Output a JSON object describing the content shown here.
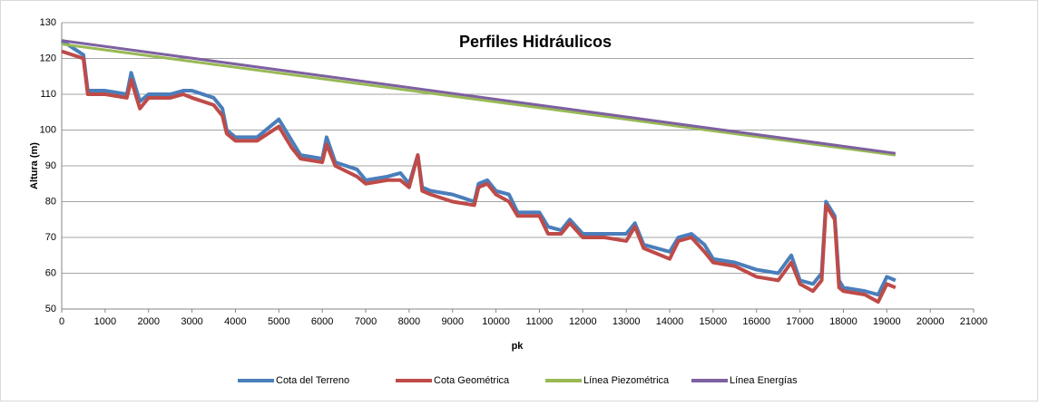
{
  "chart_data": {
    "type": "line",
    "title": "Perfiles Hidráulicos",
    "x_label": "pk",
    "y_label": "Altura (m)",
    "xlim": [
      0,
      21000
    ],
    "xticks": [
      0,
      1000,
      2000,
      3000,
      4000,
      5000,
      6000,
      7000,
      8000,
      9000,
      10000,
      11000,
      12000,
      13000,
      14000,
      15000,
      16000,
      17000,
      18000,
      19000,
      20000,
      21000
    ],
    "ylim": [
      50,
      130
    ],
    "yticks": [
      50,
      60,
      70,
      80,
      90,
      100,
      110,
      120,
      130
    ],
    "grid": true,
    "legend": "bottom",
    "series": [
      {
        "name": "Cota del Terreno",
        "color": "#4a7ebb",
        "x": [
          0,
          500,
          600,
          1000,
          1500,
          1600,
          1800,
          2000,
          2500,
          2800,
          3000,
          3500,
          3700,
          3800,
          4000,
          4500,
          5000,
          5300,
          5500,
          6000,
          6100,
          6300,
          6800,
          7000,
          7500,
          7800,
          8000,
          8200,
          8300,
          8500,
          9000,
          9500,
          9600,
          9800,
          10000,
          10300,
          10500,
          11000,
          11200,
          11500,
          11700,
          12000,
          12500,
          13000,
          13200,
          13400,
          14000,
          14200,
          14500,
          14800,
          15000,
          15500,
          16000,
          16500,
          16800,
          17000,
          17300,
          17500,
          17600,
          17800,
          17900,
          18000,
          18500,
          18800,
          19000,
          19200
        ],
        "values": [
          125,
          121,
          111,
          111,
          110,
          116,
          108,
          110,
          110,
          111,
          111,
          109,
          106,
          100,
          98,
          98,
          103,
          97,
          93,
          92,
          98,
          91,
          89,
          86,
          87,
          88,
          85,
          93,
          84,
          83,
          82,
          80,
          85,
          86,
          83,
          82,
          77,
          77,
          73,
          72,
          75,
          71,
          71,
          71,
          74,
          68,
          66,
          70,
          71,
          68,
          64,
          63,
          61,
          60,
          65,
          58,
          57,
          60,
          80,
          76,
          58,
          56,
          55,
          54,
          59,
          58
        ]
      },
      {
        "name": "Cota Geométrica",
        "color": "#be4b48",
        "x": [
          0,
          500,
          600,
          1000,
          1500,
          1600,
          1800,
          2000,
          2500,
          2800,
          3000,
          3500,
          3700,
          3800,
          4000,
          4500,
          5000,
          5300,
          5500,
          6000,
          6100,
          6300,
          6800,
          7000,
          7500,
          7800,
          8000,
          8200,
          8300,
          8500,
          9000,
          9500,
          9600,
          9800,
          10000,
          10300,
          10500,
          11000,
          11200,
          11500,
          11700,
          12000,
          12500,
          13000,
          13200,
          13400,
          14000,
          14200,
          14500,
          14800,
          15000,
          15500,
          16000,
          16500,
          16800,
          17000,
          17300,
          17500,
          17600,
          17800,
          17900,
          18000,
          18500,
          18800,
          19000,
          19200
        ],
        "values": [
          122,
          120,
          110,
          110,
          109,
          114,
          106,
          109,
          109,
          110,
          109,
          107,
          104,
          99,
          97,
          97,
          101,
          95,
          92,
          91,
          96,
          90,
          87,
          85,
          86,
          86,
          84,
          93,
          83,
          82,
          80,
          79,
          84,
          85,
          82,
          80,
          76,
          76,
          71,
          71,
          74,
          70,
          70,
          69,
          73,
          67,
          64,
          69,
          70,
          66,
          63,
          62,
          59,
          58,
          63,
          57,
          55,
          58,
          79,
          75,
          56,
          55,
          54,
          52,
          57,
          56
        ]
      },
      {
        "name": "Línea Piezométrica",
        "color": "#98b954",
        "x": [
          0,
          19200
        ],
        "values": [
          124,
          93
        ]
      },
      {
        "name": "Línea Energías",
        "color": "#7d60a0",
        "x": [
          0,
          19200
        ],
        "values": [
          125,
          93.5
        ]
      }
    ]
  }
}
